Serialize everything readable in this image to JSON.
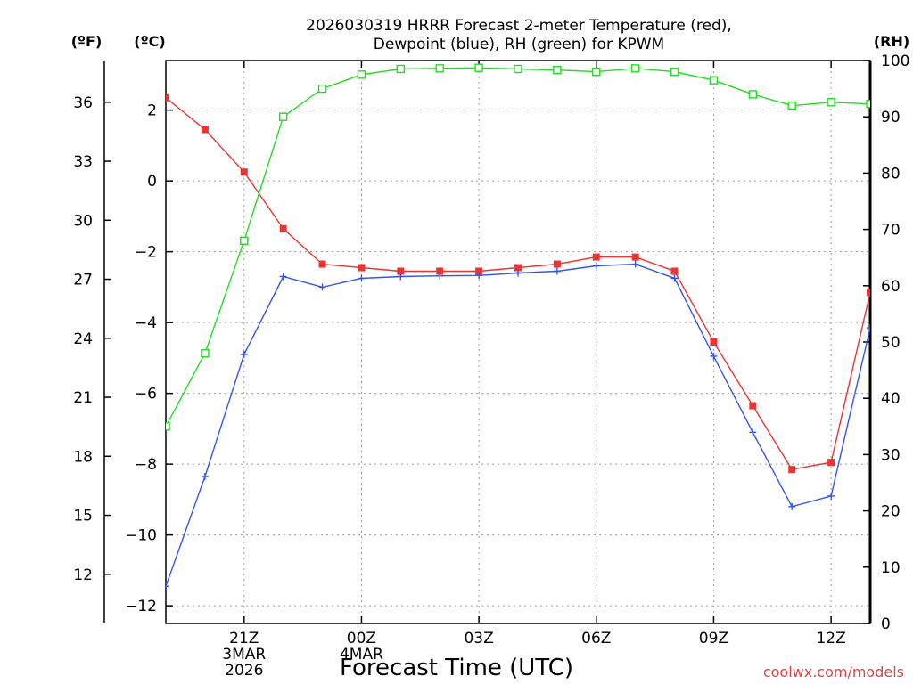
{
  "chart_data": {
    "type": "line",
    "title_lines": [
      "2026030319 HRRR Forecast 2-meter Temperature (red),",
      "Dewpoint (blue), RH (green) for KPWM"
    ],
    "xlabel": "Forecast Time (UTC)",
    "credit": "coolwx.com/models",
    "units": {
      "fahrenheit": "(ºF)",
      "celsius": "(ºC)",
      "rh": "(RH)"
    },
    "x_hours": [
      0,
      1,
      2,
      3,
      4,
      5,
      6,
      7,
      8,
      9,
      10,
      11,
      12,
      13,
      14,
      15,
      16,
      17,
      18
    ],
    "xlim": [
      0,
      18
    ],
    "x_ticks": [
      {
        "hour": 2,
        "lines": [
          "21Z",
          "3MAR",
          "2026"
        ]
      },
      {
        "hour": 5,
        "lines": [
          "00Z",
          "4MAR"
        ]
      },
      {
        "hour": 8,
        "lines": [
          "03Z"
        ]
      },
      {
        "hour": 11,
        "lines": [
          "06Z"
        ]
      },
      {
        "hour": 14,
        "lines": [
          "09Z"
        ]
      },
      {
        "hour": 17,
        "lines": [
          "12Z"
        ]
      }
    ],
    "celsius_axis": {
      "ylim": [
        -12.5,
        3.4
      ],
      "ticks": [
        2,
        0,
        -2,
        -4,
        -6,
        -8,
        -10,
        -12
      ],
      "tick_labels": [
        "2",
        "0",
        "−2",
        "−4",
        "−6",
        "−8",
        "−10",
        "−12"
      ]
    },
    "fahrenheit_axis": {
      "ylim": [
        9.5,
        38.12
      ],
      "ticks": [
        36,
        33,
        30,
        27,
        24,
        21,
        18,
        15,
        12
      ],
      "tick_labels": [
        "36",
        "33",
        "30",
        "27",
        "24",
        "21",
        "18",
        "15",
        "12"
      ]
    },
    "rh_axis": {
      "ylim": [
        0,
        100
      ],
      "ticks": [
        0,
        10,
        20,
        30,
        40,
        50,
        60,
        70,
        80,
        90,
        100
      ],
      "tick_labels": [
        "0",
        "10",
        "20",
        "30",
        "40",
        "50",
        "60",
        "70",
        "80",
        "90",
        "100"
      ]
    },
    "series": [
      {
        "name": "Temperature",
        "axis": "celsius",
        "color": "#ee3333",
        "marker": "filled-square",
        "values": [
          2.35,
          1.45,
          0.25,
          -1.35,
          -2.35,
          -2.45,
          -2.55,
          -2.55,
          -2.55,
          -2.45,
          -2.35,
          -2.15,
          -2.15,
          -2.55,
          -4.55,
          -6.35,
          -8.15,
          -7.95,
          -3.15
        ]
      },
      {
        "name": "Dewpoint",
        "axis": "celsius",
        "color": "#3355ee",
        "marker": "plus",
        "values": [
          -11.45,
          -8.35,
          -4.9,
          -2.7,
          -3.0,
          -2.75,
          -2.7,
          -2.68,
          -2.67,
          -2.6,
          -2.55,
          -2.4,
          -2.35,
          -2.75,
          -4.95,
          -7.1,
          -9.2,
          -8.9,
          -4.15
        ]
      },
      {
        "name": "RH",
        "axis": "rh",
        "color": "#22dd22",
        "marker": "open-square",
        "values": [
          35,
          48,
          68,
          90,
          95,
          97.5,
          98.5,
          98.6,
          98.7,
          98.5,
          98.3,
          98,
          98.6,
          98,
          96.5,
          94,
          92,
          92.6,
          92.3
        ]
      }
    ]
  }
}
